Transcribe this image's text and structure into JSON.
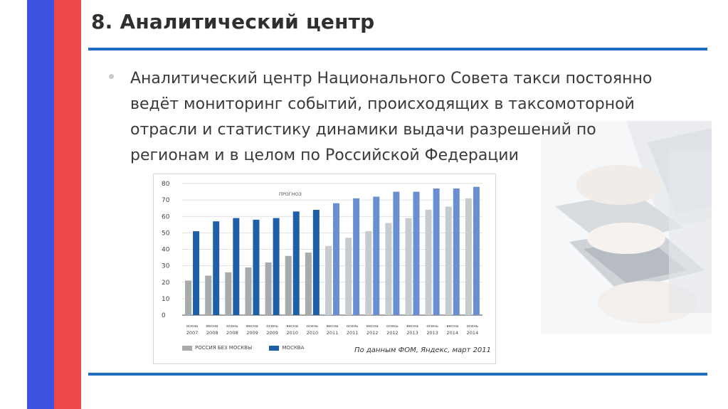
{
  "slide": {
    "title": "8. Аналитический центр",
    "paragraph_lines": [
      "Аналитический центр Национального Совета такси постоянно",
      "ведёт мониторинг событий, происходящих в таксомоторной",
      "отрасли и статистику динамики выдачи разрешений по",
      "регионам и в целом по Российской Федерации"
    ],
    "colors": {
      "stripe_blue": "#3b53e0",
      "stripe_red": "#f0474a",
      "rule": "#1f6fc0"
    }
  },
  "chart_data": {
    "type": "bar",
    "periods": [
      [
        "осень",
        "2007"
      ],
      [
        "весна",
        "2008"
      ],
      [
        "осень",
        "2008"
      ],
      [
        "весна",
        "2009"
      ],
      [
        "осень",
        "2009"
      ],
      [
        "весна",
        "2010"
      ],
      [
        "осень",
        "2010"
      ],
      [
        "весна",
        "2011"
      ],
      [
        "осень",
        "2011"
      ],
      [
        "весна",
        "2012"
      ],
      [
        "осень",
        "2012"
      ],
      [
        "весна",
        "2013"
      ],
      [
        "осень",
        "2013"
      ],
      [
        "весна",
        "2014"
      ],
      [
        "осень",
        "2014"
      ]
    ],
    "series": [
      {
        "name": "РОССИЯ БЕЗ МОСКВЫ",
        "values": [
          21,
          24,
          26,
          29,
          32,
          36,
          38,
          42,
          47,
          51,
          56,
          59,
          64,
          66,
          71
        ]
      },
      {
        "name": "МОСКВА",
        "values": [
          51,
          57,
          59,
          58,
          59,
          63,
          64,
          68,
          71,
          72,
          75,
          75,
          77,
          77,
          78
        ]
      }
    ],
    "colors": {
      "actual_gray": "#a7abab",
      "actual_blue": "#1f5fa8",
      "forecast_gray": "#c6cbcd",
      "forecast_blue": "#6a8fd0",
      "legend_gray": "#a7abab",
      "legend_blue": "#1f5fa8"
    },
    "forecast_start_index": 7,
    "forecast_label": "ПРОГНОЗ",
    "y_ticks": [
      0,
      10,
      20,
      30,
      40,
      50,
      60,
      70,
      80
    ],
    "ylim": [
      0,
      80
    ],
    "grid": true,
    "legend_position": "bottom-left",
    "source": "По данным ФОМ, Яндекс, март 2011"
  }
}
